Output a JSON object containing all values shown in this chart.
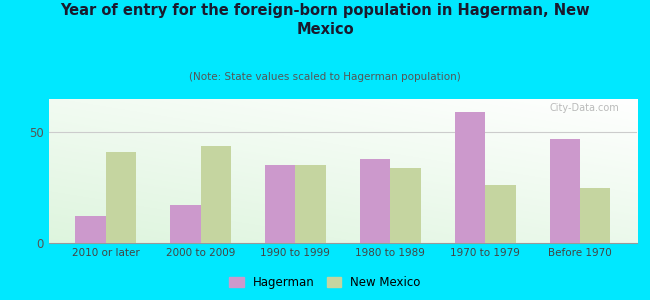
{
  "title": "Year of entry for the foreign-born population in Hagerman, New\nMexico",
  "subtitle": "(Note: State values scaled to Hagerman population)",
  "categories": [
    "2010 or later",
    "2000 to 2009",
    "1990 to 1999",
    "1980 to 1989",
    "1970 to 1979",
    "Before 1970"
  ],
  "hagerman_values": [
    12,
    17,
    35,
    38,
    59,
    47
  ],
  "newmexico_values": [
    41,
    44,
    35,
    34,
    26,
    25
  ],
  "hagerman_color": "#cc99cc",
  "newmexico_color": "#c5d5a0",
  "background_color": "#00e8ff",
  "ylim": [
    0,
    65
  ],
  "bar_width": 0.32,
  "legend_hagerman": "Hagerman",
  "legend_newmexico": "New Mexico",
  "watermark": "City-Data.com"
}
